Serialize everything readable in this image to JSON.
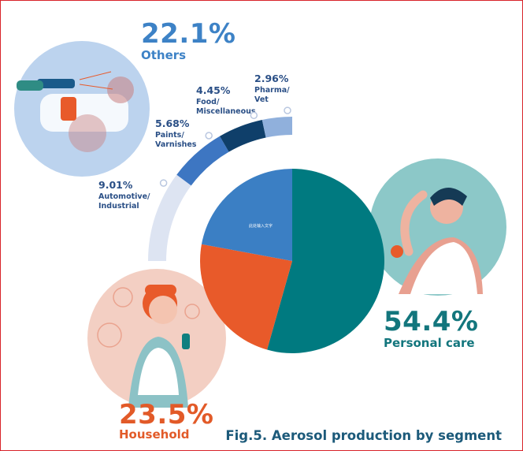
{
  "chart_data": {
    "type": "pie",
    "caption": "Fig.5. Aerosol production by segment",
    "slices": [
      {
        "value": "54.4%",
        "pct": 54.4,
        "label": "Personal care",
        "color": "#007a80"
      },
      {
        "value": "23.5%",
        "pct": 23.5,
        "label": "Household",
        "color": "#e85a2a"
      },
      {
        "value": "22.1%",
        "pct": 22.1,
        "label": "Others",
        "color": "#3b7fc4"
      }
    ],
    "others_breakdown": [
      {
        "value": "9.01%",
        "label_lines": [
          "Automotive/",
          "Industrial"
        ],
        "pct": 9.01,
        "color": "#dde4f2"
      },
      {
        "value": "5.68%",
        "label_lines": [
          "Paints/",
          "Varnishes"
        ],
        "pct": 5.68,
        "color": "#3d76c2"
      },
      {
        "value": "4.45%",
        "label_lines": [
          "Food/",
          "Miscellaneous"
        ],
        "pct": 4.45,
        "color": "#0f3f6a"
      },
      {
        "value": "2.96%",
        "label_lines": [
          "Pharma/",
          "Vet"
        ],
        "pct": 2.96,
        "color": "#90b0dc"
      }
    ],
    "pie_center_note": "此处输入文字"
  }
}
